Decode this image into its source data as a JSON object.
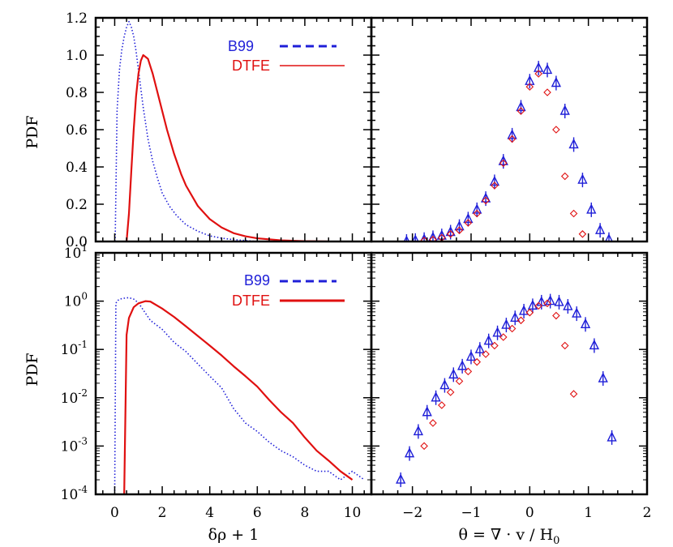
{
  "colors": {
    "b99": "#1f1fd8",
    "dtfe": "#e01010",
    "frame": "#000000"
  },
  "chart_data": [
    {
      "panel": "top-left",
      "type": "line",
      "xlabel": "",
      "ylabel": "PDF",
      "xlim": [
        -0.8,
        10.8
      ],
      "ylim": [
        0,
        1.2
      ],
      "yscale": "linear",
      "xticks": [
        0,
        2,
        4,
        6,
        8,
        10
      ],
      "yticks": [
        0.0,
        0.2,
        0.4,
        0.6,
        0.8,
        1.0,
        1.2
      ],
      "ytick_labels": [
        "0.0",
        "0.2",
        "0.4",
        "0.6",
        "0.8",
        "1.0",
        "1.2"
      ],
      "legend": {
        "position": "top-right",
        "entries": [
          "B99",
          "DTFE"
        ]
      },
      "series": [
        {
          "name": "B99",
          "style": "dotted",
          "x": [
            0.02,
            0.1,
            0.2,
            0.3,
            0.4,
            0.5,
            0.6,
            0.7,
            0.8,
            0.9,
            1.0,
            1.2,
            1.4,
            1.6,
            1.8,
            2.0,
            2.3,
            2.6,
            3.0,
            3.5,
            4.0,
            4.5,
            5.0,
            5.5,
            6.0
          ],
          "y": [
            0.0,
            0.7,
            0.92,
            1.03,
            1.1,
            1.15,
            1.18,
            1.15,
            1.1,
            1.02,
            0.92,
            0.72,
            0.55,
            0.43,
            0.34,
            0.26,
            0.19,
            0.14,
            0.09,
            0.055,
            0.03,
            0.018,
            0.01,
            0.005,
            0.0
          ]
        },
        {
          "name": "DTFE",
          "style": "solid",
          "x": [
            0.5,
            0.6,
            0.7,
            0.8,
            0.9,
            1.0,
            1.1,
            1.2,
            1.3,
            1.4,
            1.5,
            1.6,
            1.8,
            2.0,
            2.2,
            2.5,
            2.8,
            3.0,
            3.5,
            4.0,
            4.5,
            5.0,
            5.5,
            6.0,
            7.0,
            8.0,
            9.0
          ],
          "y": [
            0.0,
            0.15,
            0.38,
            0.6,
            0.78,
            0.9,
            0.97,
            1.0,
            0.99,
            0.98,
            0.94,
            0.9,
            0.8,
            0.7,
            0.6,
            0.47,
            0.36,
            0.3,
            0.19,
            0.12,
            0.075,
            0.045,
            0.028,
            0.017,
            0.006,
            0.002,
            0.0
          ]
        }
      ]
    },
    {
      "panel": "top-right",
      "type": "scatter",
      "xlabel": "",
      "ylabel": "",
      "xlim": [
        -2.7,
        2.0
      ],
      "ylim": [
        0,
        1.2
      ],
      "yscale": "linear",
      "xticks": [
        -2,
        -1,
        0,
        1,
        2
      ],
      "yticks": [
        0.0,
        0.2,
        0.4,
        0.6,
        0.8,
        1.0,
        1.2
      ],
      "series": [
        {
          "name": "B99",
          "marker": "triangle",
          "x": [
            -2.1,
            -1.95,
            -1.8,
            -1.65,
            -1.5,
            -1.35,
            -1.2,
            -1.05,
            -0.9,
            -0.75,
            -0.6,
            -0.45,
            -0.3,
            -0.15,
            0.0,
            0.15,
            0.3,
            0.45,
            0.6,
            0.75,
            0.9,
            1.05,
            1.2,
            1.35
          ],
          "y": [
            0.0,
            0.005,
            0.01,
            0.02,
            0.03,
            0.05,
            0.08,
            0.12,
            0.17,
            0.23,
            0.32,
            0.43,
            0.57,
            0.72,
            0.86,
            0.93,
            0.92,
            0.85,
            0.7,
            0.52,
            0.33,
            0.17,
            0.06,
            0.01
          ]
        },
        {
          "name": "DTFE",
          "marker": "diamond",
          "x": [
            -1.8,
            -1.65,
            -1.5,
            -1.35,
            -1.2,
            -1.05,
            -0.9,
            -0.75,
            -0.6,
            -0.45,
            -0.3,
            -0.15,
            0.0,
            0.15,
            0.3,
            0.45,
            0.6,
            0.75,
            0.9
          ],
          "y": [
            0.005,
            0.01,
            0.02,
            0.04,
            0.06,
            0.1,
            0.15,
            0.22,
            0.3,
            0.42,
            0.55,
            0.7,
            0.83,
            0.9,
            0.8,
            0.6,
            0.35,
            0.15,
            0.04
          ]
        }
      ]
    },
    {
      "panel": "bottom-left",
      "type": "line",
      "xlabel": "δρ + 1",
      "ylabel": "PDF",
      "xlim": [
        -0.8,
        10.8
      ],
      "ylim": [
        0.0001,
        10
      ],
      "yscale": "log",
      "xticks": [
        0,
        2,
        4,
        6,
        8,
        10
      ],
      "xtick_labels": [
        "0",
        "2",
        "4",
        "6",
        "8",
        "10"
      ],
      "yticks": [
        0.0001,
        0.001,
        0.01,
        0.1,
        1,
        10
      ],
      "ytick_labels": [
        [
          "10",
          "-4"
        ],
        [
          "10",
          "-3"
        ],
        [
          "10",
          "-2"
        ],
        [
          "10",
          "-1"
        ],
        [
          "10",
          "0"
        ],
        [
          "10",
          "1"
        ]
      ],
      "legend": {
        "position": "top-right",
        "entries": [
          "B99",
          "DTFE"
        ]
      },
      "series": [
        {
          "name": "B99",
          "style": "dotted",
          "x": [
            0.0,
            0.05,
            0.1,
            0.2,
            0.4,
            0.6,
            0.8,
            1.0,
            1.5,
            2.0,
            2.5,
            3.0,
            3.5,
            4.0,
            4.5,
            5.0,
            5.5,
            6.0,
            6.5,
            7.0,
            7.5,
            8.0,
            8.5,
            9.0,
            9.5,
            10.0,
            10.5
          ],
          "y": [
            0.0001,
            0.9,
            1.0,
            1.1,
            1.15,
            1.18,
            1.1,
            0.92,
            0.4,
            0.26,
            0.14,
            0.09,
            0.05,
            0.028,
            0.016,
            0.006,
            0.003,
            0.002,
            0.0012,
            0.0008,
            0.0006,
            0.0004,
            0.0003,
            0.0003,
            0.0002,
            0.0003,
            0.0002
          ]
        },
        {
          "name": "DTFE",
          "style": "solid",
          "x": [
            0.4,
            0.5,
            0.6,
            0.8,
            1.0,
            1.3,
            1.5,
            2.0,
            2.5,
            3.0,
            3.5,
            4.0,
            4.5,
            5.0,
            5.5,
            6.0,
            6.5,
            7.0,
            7.5,
            8.0,
            8.5,
            9.0,
            9.5,
            10.0
          ],
          "y": [
            0.0001,
            0.2,
            0.45,
            0.75,
            0.9,
            1.0,
            0.98,
            0.7,
            0.47,
            0.3,
            0.19,
            0.12,
            0.075,
            0.045,
            0.028,
            0.017,
            0.009,
            0.005,
            0.003,
            0.0015,
            0.0008,
            0.0005,
            0.0003,
            0.0002
          ]
        }
      ]
    },
    {
      "panel": "bottom-right",
      "type": "scatter",
      "xlabel": "θ = ∇ · v / H",
      "xlabel_subscript": "0",
      "ylabel": "",
      "xlim": [
        -2.7,
        2.0
      ],
      "ylim": [
        0.0001,
        10
      ],
      "yscale": "log",
      "xticks": [
        -2,
        -1,
        0,
        1,
        2
      ],
      "xtick_labels": [
        "−2",
        "−1",
        "0",
        "1",
        "2"
      ],
      "yticks": [
        0.0001,
        0.001,
        0.01,
        0.1,
        1,
        10
      ],
      "series": [
        {
          "name": "B99",
          "marker": "triangle",
          "x": [
            -2.2,
            -2.05,
            -1.9,
            -1.75,
            -1.6,
            -1.45,
            -1.3,
            -1.15,
            -1.0,
            -0.85,
            -0.7,
            -0.55,
            -0.4,
            -0.25,
            -0.1,
            0.05,
            0.2,
            0.35,
            0.5,
            0.65,
            0.8,
            0.95,
            1.1,
            1.25,
            1.4
          ],
          "y": [
            0.0002,
            0.0007,
            0.002,
            0.005,
            0.01,
            0.018,
            0.03,
            0.045,
            0.07,
            0.1,
            0.15,
            0.22,
            0.32,
            0.45,
            0.62,
            0.8,
            0.95,
            1.0,
            0.95,
            0.78,
            0.55,
            0.33,
            0.12,
            0.025,
            0.0015
          ]
        },
        {
          "name": "DTFE",
          "marker": "diamond",
          "x": [
            -1.8,
            -1.65,
            -1.5,
            -1.35,
            -1.2,
            -1.05,
            -0.9,
            -0.75,
            -0.6,
            -0.45,
            -0.3,
            -0.15,
            0.0,
            0.15,
            0.3,
            0.45,
            0.6,
            0.75
          ],
          "y": [
            0.001,
            0.003,
            0.007,
            0.013,
            0.022,
            0.035,
            0.055,
            0.08,
            0.12,
            0.18,
            0.27,
            0.4,
            0.58,
            0.8,
            0.9,
            0.5,
            0.12,
            0.012
          ]
        }
      ]
    }
  ]
}
